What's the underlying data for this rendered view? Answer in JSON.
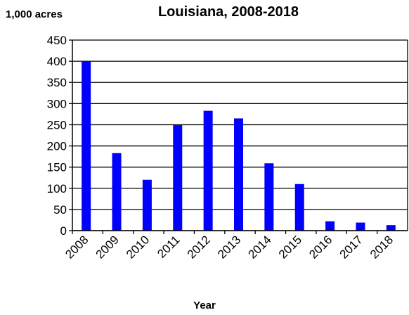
{
  "chart_data": {
    "type": "bar",
    "title": "Louisiana, 2008-2018",
    "ylabel": "1,000 acres",
    "xlabel": "Year",
    "categories": [
      "2008",
      "2009",
      "2010",
      "2011",
      "2012",
      "2013",
      "2014",
      "2015",
      "2016",
      "2017",
      "2018"
    ],
    "values": [
      400,
      183,
      120,
      249,
      283,
      265,
      159,
      110,
      22,
      19,
      13
    ],
    "ylim": [
      0,
      450
    ],
    "yticks": [
      0,
      50,
      100,
      150,
      200,
      250,
      300,
      350,
      400,
      450
    ],
    "grid": "horizontal",
    "bar_color": "#0000ff",
    "legend": "none"
  }
}
